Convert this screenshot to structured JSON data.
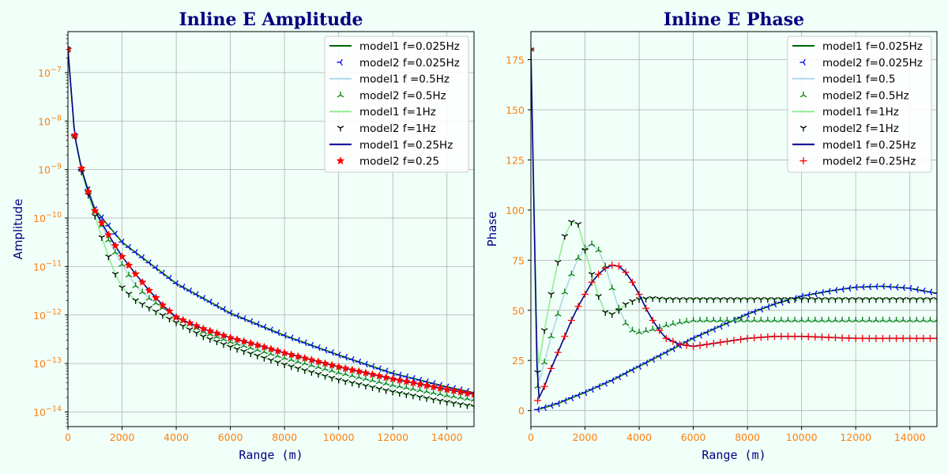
{
  "chart_data": [
    {
      "type": "line",
      "title": "Inline E Amplitude",
      "xlabel": "Range (m)",
      "ylabel": "Amplitude",
      "xlim": [
        0,
        15000
      ],
      "ylim": [
        5e-15,
        7e-07
      ],
      "yscale": "log",
      "grid": true,
      "legend_position": "top-right",
      "xticks": [
        0,
        2000,
        4000,
        6000,
        8000,
        10000,
        12000,
        14000
      ],
      "yticks": [
        1e-14,
        1e-13,
        1e-12,
        1e-11,
        1e-10,
        1e-09,
        1e-08,
        1e-07
      ],
      "ytick_labels": [
        "10-14",
        "10-13",
        "10-12",
        "10-11",
        "10-10",
        "10-9",
        "10-8",
        "10-7"
      ],
      "series": [
        {
          "name": "model1 f=0.025Hz",
          "style": "line",
          "color": "#006400",
          "x": [
            0,
            250,
            500,
            1000,
            2000,
            4000,
            6000,
            8000,
            10000,
            12000,
            14000,
            15000
          ],
          "y": [
            3e-07,
            5e-09,
            1e-09,
            1.5e-10,
            3.2e-11,
            4.5e-12,
            1.1e-12,
            3.8e-13,
            1.5e-13,
            6.3e-14,
            3.3e-14,
            2.5e-14
          ]
        },
        {
          "name": "model2 f=0.025Hz",
          "style": "marker",
          "marker": "tri_left",
          "color": "#0000ff",
          "x": [
            0,
            250,
            500,
            1000,
            2000,
            4000,
            6000,
            8000,
            10000,
            12000,
            14000,
            15000
          ],
          "y": [
            3e-07,
            5e-09,
            1e-09,
            1.5e-10,
            3.2e-11,
            4.5e-12,
            1.1e-12,
            3.8e-13,
            1.5e-13,
            6.3e-14,
            3.3e-14,
            2.5e-14
          ]
        },
        {
          "name": "model1 f =0.5Hz",
          "style": "line",
          "color": "#add8e6",
          "x": [
            0,
            250,
            500,
            1000,
            1500,
            2000,
            2500,
            3000,
            3500,
            4000,
            5000,
            6000,
            8000,
            10000,
            12000,
            14000,
            15000
          ],
          "y": [
            3e-07,
            5e-09,
            1e-09,
            1.4e-10,
            3.5e-11,
            1.1e-11,
            4e-12,
            2.2e-12,
            1.4e-12,
            9e-13,
            4.5e-13,
            2.8e-13,
            1.3e-13,
            6.5e-14,
            3.6e-14,
            2.2e-14,
            1.8e-14
          ]
        },
        {
          "name": "model2 f=0.5Hz",
          "style": "marker",
          "marker": "tri_up",
          "color": "#008000",
          "x": [
            0,
            250,
            500,
            1000,
            1500,
            2000,
            2500,
            3000,
            3500,
            4000,
            5000,
            6000,
            8000,
            10000,
            12000,
            14000,
            15000
          ],
          "y": [
            3e-07,
            5e-09,
            1e-09,
            1.4e-10,
            3.5e-11,
            1.1e-11,
            4e-12,
            2.2e-12,
            1.4e-12,
            9e-13,
            4.5e-13,
            2.8e-13,
            1.3e-13,
            6.5e-14,
            3.6e-14,
            2.2e-14,
            1.8e-14
          ]
        },
        {
          "name": "model1 f=1Hz",
          "style": "line",
          "color": "#90ee90",
          "x": [
            0,
            250,
            500,
            750,
            1000,
            1250,
            1500,
            1750,
            2000,
            2500,
            3000,
            4000,
            5000,
            6000,
            8000,
            10000,
            12000,
            14000,
            15000
          ],
          "y": [
            3e-07,
            5e-09,
            9e-10,
            3e-10,
            1.1e-10,
            4e-11,
            1.6e-11,
            7e-12,
            3.7e-12,
            2e-12,
            1.4e-12,
            7e-13,
            3.6e-13,
            2.2e-13,
            9.5e-14,
            4.6e-14,
            2.6e-14,
            1.6e-14,
            1.3e-14
          ]
        },
        {
          "name": "model2 f=1Hz",
          "style": "marker",
          "marker": "tri_down",
          "color": "#000000",
          "x": [
            0,
            250,
            500,
            750,
            1000,
            1250,
            1500,
            1750,
            2000,
            2500,
            3000,
            4000,
            5000,
            6000,
            8000,
            10000,
            12000,
            14000,
            15000
          ],
          "y": [
            3e-07,
            5e-09,
            9e-10,
            3e-10,
            1.1e-10,
            4e-11,
            1.6e-11,
            7e-12,
            3.7e-12,
            2e-12,
            1.4e-12,
            7e-13,
            3.6e-13,
            2.2e-13,
            9.5e-14,
            4.6e-14,
            2.6e-14,
            1.6e-14,
            1.3e-14
          ]
        },
        {
          "name": "model1 f=0.25Hz",
          "style": "line",
          "color": "#00008b",
          "x": [
            0,
            250,
            500,
            750,
            1000,
            1500,
            2000,
            2500,
            3000,
            3500,
            4000,
            5000,
            6000,
            7000,
            8000,
            10000,
            12000,
            14000,
            15000
          ],
          "y": [
            3e-07,
            5e-09,
            1.05e-09,
            3.5e-10,
            1.4e-10,
            4.5e-11,
            1.6e-11,
            7e-12,
            3.2e-12,
            1.6e-12,
            9e-13,
            5.2e-13,
            3.4e-13,
            2.4e-13,
            1.65e-13,
            8.5e-14,
            4.8e-14,
            2.9e-14,
            2.3e-14
          ]
        },
        {
          "name": "model2 f=0.25",
          "style": "marker",
          "marker": "star",
          "color": "#ff0000",
          "x": [
            0,
            250,
            500,
            750,
            1000,
            1500,
            2000,
            2500,
            3000,
            3500,
            4000,
            5000,
            6000,
            7000,
            8000,
            10000,
            12000,
            14000,
            15000
          ],
          "y": [
            3e-07,
            5e-09,
            1.05e-09,
            3.5e-10,
            1.4e-10,
            4.5e-11,
            1.6e-11,
            7e-12,
            3.2e-12,
            1.6e-12,
            9e-13,
            5.2e-13,
            3.4e-13,
            2.4e-13,
            1.65e-13,
            8.5e-14,
            4.8e-14,
            2.9e-14,
            2.3e-14
          ]
        }
      ]
    },
    {
      "type": "line",
      "title": "Inline E Phase",
      "xlabel": "Range (m)",
      "ylabel": "Phase",
      "xlim": [
        0,
        15000
      ],
      "ylim": [
        -8,
        189
      ],
      "yscale": "linear",
      "grid": true,
      "legend_position": "top-right",
      "xticks": [
        0,
        2000,
        4000,
        6000,
        8000,
        10000,
        12000,
        14000
      ],
      "yticks": [
        0,
        25,
        50,
        75,
        100,
        125,
        150,
        175
      ],
      "ytick_labels": [
        "0",
        "25",
        "50",
        "75",
        "100",
        "125",
        "150",
        "175"
      ],
      "series": [
        {
          "name": "model1 f=0.025Hz",
          "style": "line",
          "color": "#006400",
          "x": [
            250,
            1000,
            2000,
            3000,
            4000,
            5000,
            6000,
            7000,
            8000,
            9000,
            10000,
            11000,
            12000,
            13000,
            14000,
            15000
          ],
          "y": [
            0.5,
            3.5,
            9,
            15,
            22,
            29,
            36,
            42,
            48,
            53,
            57,
            59.5,
            61.5,
            62,
            61,
            58.5
          ]
        },
        {
          "name": "model2 f=0.025Hz",
          "style": "marker",
          "marker": "tri_left",
          "color": "#0000ff",
          "x": [
            250,
            1000,
            2000,
            3000,
            4000,
            5000,
            6000,
            7000,
            8000,
            9000,
            10000,
            11000,
            12000,
            13000,
            14000,
            15000
          ],
          "y": [
            0.5,
            3.5,
            9,
            15,
            22,
            29,
            36,
            42,
            48,
            53,
            57,
            59.5,
            61.5,
            62,
            61,
            58.5
          ]
        },
        {
          "name": "model1 f=0.5",
          "style": "line",
          "color": "#add8e6",
          "x": [
            0,
            250,
            500,
            750,
            1000,
            1250,
            1500,
            1750,
            2000,
            2250,
            2500,
            2750,
            3000,
            3250,
            3500,
            3750,
            4000,
            4500,
            5000,
            5500,
            6000,
            7000,
            8000,
            10000,
            12000,
            14000,
            15000
          ],
          "y": [
            180,
            12,
            24,
            37,
            48,
            59,
            68,
            76,
            81,
            83,
            80,
            72,
            61,
            51,
            43.5,
            40,
            39,
            40.5,
            42.5,
            44,
            45,
            45,
            45,
            45,
            45,
            45,
            45
          ]
        },
        {
          "name": "model2 f=0.5Hz",
          "style": "marker",
          "marker": "tri_up",
          "color": "#008000",
          "x": [
            0,
            250,
            500,
            750,
            1000,
            1250,
            1500,
            1750,
            2000,
            2250,
            2500,
            2750,
            3000,
            3250,
            3500,
            3750,
            4000,
            4500,
            5000,
            5500,
            6000,
            7000,
            8000,
            10000,
            12000,
            14000,
            15000
          ],
          "y": [
            180,
            12,
            24,
            37,
            48,
            59,
            68,
            76,
            81,
            83,
            80,
            72,
            61,
            51,
            43.5,
            40,
            39,
            40.5,
            42.5,
            44,
            45,
            45,
            45,
            45,
            45,
            45,
            45
          ]
        },
        {
          "name": "model1 f=1Hz",
          "style": "line",
          "color": "#90ee90",
          "x": [
            0,
            250,
            500,
            750,
            1000,
            1250,
            1500,
            1750,
            2000,
            2250,
            2500,
            2750,
            3000,
            3250,
            3500,
            3750,
            4000,
            4500,
            5000,
            6000,
            8000,
            10000,
            12000,
            14000,
            15000
          ],
          "y": [
            180,
            19,
            40,
            58,
            74,
            87,
            94,
            93,
            80,
            68,
            57,
            49,
            48,
            50,
            53,
            54.5,
            55.5,
            56,
            55.5,
            55.5,
            55.5,
            55.5,
            55.5,
            55.5,
            55.5
          ]
        },
        {
          "name": "model2 f=1Hz",
          "style": "marker",
          "marker": "tri_down",
          "color": "#000000",
          "x": [
            0,
            250,
            500,
            750,
            1000,
            1250,
            1500,
            1750,
            2000,
            2250,
            2500,
            2750,
            3000,
            3250,
            3500,
            3750,
            4000,
            4500,
            5000,
            6000,
            8000,
            10000,
            12000,
            14000,
            15000
          ],
          "y": [
            180,
            19,
            40,
            58,
            74,
            87,
            94,
            93,
            80,
            68,
            57,
            49,
            48,
            50,
            53,
            54.5,
            55.5,
            56,
            55.5,
            55.5,
            55.5,
            55.5,
            55.5,
            55.5,
            55.5
          ]
        },
        {
          "name": "model1 f=0.25Hz",
          "style": "line",
          "color": "#00008b",
          "x": [
            0,
            250,
            500,
            750,
            1000,
            1250,
            1500,
            1750,
            2000,
            2250,
            2500,
            2750,
            3000,
            3250,
            3500,
            3750,
            4000,
            4250,
            4500,
            4750,
            5000,
            5500,
            6000,
            6500,
            7000,
            7500,
            8000,
            8500,
            9000,
            10000,
            11000,
            12000,
            13000,
            14000,
            15000
          ],
          "y": [
            180,
            5,
            12,
            21,
            29,
            37,
            45,
            52,
            58,
            64,
            68,
            71,
            72.5,
            72,
            69,
            64,
            58,
            51,
            45,
            40,
            36,
            33,
            32,
            33,
            34,
            35,
            36,
            36.5,
            37,
            37,
            36.5,
            36,
            36,
            36,
            36
          ]
        },
        {
          "name": "model2 f=0.25Hz",
          "style": "marker",
          "marker": "plus",
          "color": "#ff0000",
          "x": [
            0,
            250,
            500,
            750,
            1000,
            1250,
            1500,
            1750,
            2000,
            2250,
            2500,
            2750,
            3000,
            3250,
            3500,
            3750,
            4000,
            4250,
            4500,
            4750,
            5000,
            5500,
            6000,
            6500,
            7000,
            7500,
            8000,
            8500,
            9000,
            10000,
            11000,
            12000,
            13000,
            14000,
            15000
          ],
          "y": [
            180,
            5,
            12,
            21,
            29,
            37,
            45,
            52,
            58,
            64,
            68,
            71,
            72.5,
            72,
            69,
            64,
            58,
            51,
            45,
            40,
            36,
            33,
            32,
            33,
            34,
            35,
            36,
            36.5,
            37,
            37,
            36.5,
            36,
            36,
            36,
            36
          ]
        }
      ]
    }
  ]
}
